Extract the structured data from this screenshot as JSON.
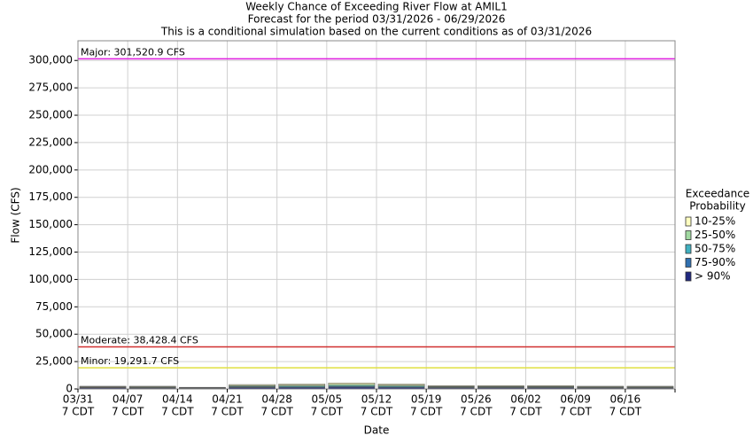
{
  "chart_data": {
    "type": "stacked_bar",
    "title": [
      "Weekly Chance of Exceeding River Flow at AMIL1",
      "Forecast for the period 03/31/2026 - 06/29/2026",
      "This is a conditional simulation based on the current conditions as of 03/31/2026"
    ],
    "x_label": "Date",
    "y_label": "Flow (CFS)",
    "categories": [
      "03/31",
      "04/07",
      "04/14",
      "04/21",
      "04/28",
      "05/05",
      "05/12",
      "05/19",
      "05/26",
      "06/02",
      "06/09",
      "06/16"
    ],
    "category_sublabel": "7 CDT",
    "legend_title": [
      "Exceedance",
      "Probability"
    ],
    "series": [
      {
        "name": "10-25%",
        "color": "#ffffc0",
        "values": [
          500,
          500,
          200,
          800,
          1000,
          1300,
          1000,
          600,
          600,
          600,
          500,
          500
        ]
      },
      {
        "name": "25-50%",
        "color": "#a0d8a0",
        "values": [
          400,
          500,
          300,
          800,
          900,
          1200,
          900,
          600,
          600,
          600,
          500,
          500
        ]
      },
      {
        "name": "50-75%",
        "color": "#40b0c0",
        "values": [
          400,
          400,
          300,
          700,
          800,
          900,
          800,
          500,
          500,
          500,
          400,
          400
        ]
      },
      {
        "name": "75-90%",
        "color": "#3070b0",
        "values": [
          300,
          300,
          200,
          500,
          500,
          600,
          500,
          400,
          400,
          400,
          300,
          300
        ]
      },
      {
        "name": "> 90%",
        "color": "#202880",
        "values": [
          900,
          800,
          500,
          1200,
          1300,
          1500,
          1300,
          900,
          900,
          900,
          800,
          800
        ]
      }
    ],
    "reference_lines": [
      {
        "value": 301520.9,
        "label": "Major: 301,520.9 CFS",
        "color": "#e020e0"
      },
      {
        "value": 38428.4,
        "label": "Moderate: 38,428.4 CFS",
        "color": "#d03030"
      },
      {
        "value": 19291.7,
        "label": "Minor: 19,291.7 CFS",
        "color": "#e0e040"
      }
    ],
    "ylim": [
      0,
      318000
    ],
    "yticks": [
      0,
      {
        "value": 25000,
        "label": "25,000"
      },
      {
        "value": 50000,
        "label": "50,000"
      },
      {
        "value": 75000,
        "label": "75,000"
      },
      {
        "value": 100000,
        "label": "100,000"
      },
      {
        "value": 125000,
        "label": "125,000"
      },
      {
        "value": 150000,
        "label": "150,000"
      },
      {
        "value": 175000,
        "label": "175,000"
      },
      {
        "value": 200000,
        "label": "200,000"
      },
      {
        "value": 225000,
        "label": "225,000"
      },
      {
        "value": 250000,
        "label": "250,000"
      },
      {
        "value": 275000,
        "label": "275,000"
      },
      {
        "value": 300000,
        "label": "300,000"
      }
    ],
    "grid": true,
    "legend": "right"
  }
}
